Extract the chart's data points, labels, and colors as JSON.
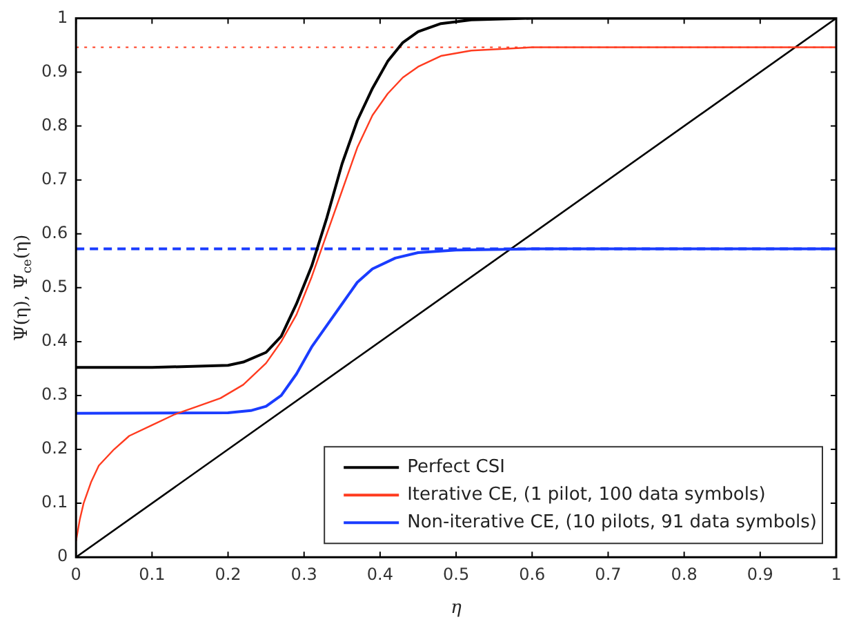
{
  "chart_data": {
    "type": "line",
    "xlabel": "η",
    "ylabel": "Ψ(η), Ψ$_{ce}$(η)",
    "xlim": [
      0,
      1
    ],
    "xticks": [
      0,
      0.1,
      0.2,
      0.3,
      0.4,
      0.5,
      0.6,
      0.7,
      0.8,
      0.9,
      1
    ],
    "ylim": [
      0,
      1
    ],
    "yticks": [
      0,
      0.1,
      0.2,
      0.3,
      0.4,
      0.5,
      0.6,
      0.7,
      0.8,
      0.9,
      1
    ],
    "legend": "bottom right",
    "marker": "none",
    "line_style": "solid",
    "series": [
      {
        "name": "Perfect CSI",
        "color": "#000000",
        "x": [
          0,
          0.1,
          0.2,
          0.22,
          0.25,
          0.27,
          0.29,
          0.31,
          0.33,
          0.35,
          0.37,
          0.39,
          0.41,
          0.43,
          0.45,
          0.48,
          0.52,
          0.6,
          1
        ],
        "values": [
          0.352,
          0.352,
          0.356,
          0.362,
          0.38,
          0.41,
          0.47,
          0.54,
          0.63,
          0.73,
          0.81,
          0.87,
          0.92,
          0.955,
          0.975,
          0.99,
          0.997,
          1,
          1
        ]
      },
      {
        "name": "Iterative CE, (1 pilot, 100 data symbols)",
        "color": "#ff3b1f",
        "x": [
          0,
          0.005,
          0.01,
          0.02,
          0.03,
          0.05,
          0.07,
          0.1,
          0.13,
          0.16,
          0.19,
          0.22,
          0.25,
          0.27,
          0.29,
          0.31,
          0.33,
          0.35,
          0.37,
          0.39,
          0.41,
          0.43,
          0.45,
          0.48,
          0.52,
          0.6,
          1
        ],
        "values": [
          0.03,
          0.07,
          0.1,
          0.14,
          0.17,
          0.2,
          0.225,
          0.245,
          0.265,
          0.28,
          0.295,
          0.32,
          0.36,
          0.4,
          0.45,
          0.52,
          0.6,
          0.68,
          0.76,
          0.82,
          0.86,
          0.89,
          0.91,
          0.93,
          0.94,
          0.946,
          0.946
        ]
      },
      {
        "name": "Non-iterative CE, (10 pilots, 91 data symbols)",
        "color": "#1a3cff",
        "x": [
          0,
          0.2,
          0.23,
          0.25,
          0.27,
          0.29,
          0.31,
          0.33,
          0.35,
          0.37,
          0.39,
          0.42,
          0.45,
          0.5,
          0.6,
          1
        ],
        "values": [
          0.267,
          0.268,
          0.272,
          0.28,
          0.3,
          0.34,
          0.39,
          0.43,
          0.47,
          0.51,
          0.535,
          0.555,
          0.565,
          0.57,
          0.572,
          0.572
        ]
      },
      {
        "color": "#000000",
        "x": [
          0,
          1
        ],
        "values": [
          0,
          1
        ]
      }
    ],
    "ref_lines": [
      {
        "axis": "y",
        "value": 0.946,
        "color": "#ff3b1f",
        "line_style": "dotted"
      },
      {
        "axis": "y",
        "value": 0.572,
        "color": "#1a3cff",
        "line_style": "dashed"
      }
    ]
  }
}
